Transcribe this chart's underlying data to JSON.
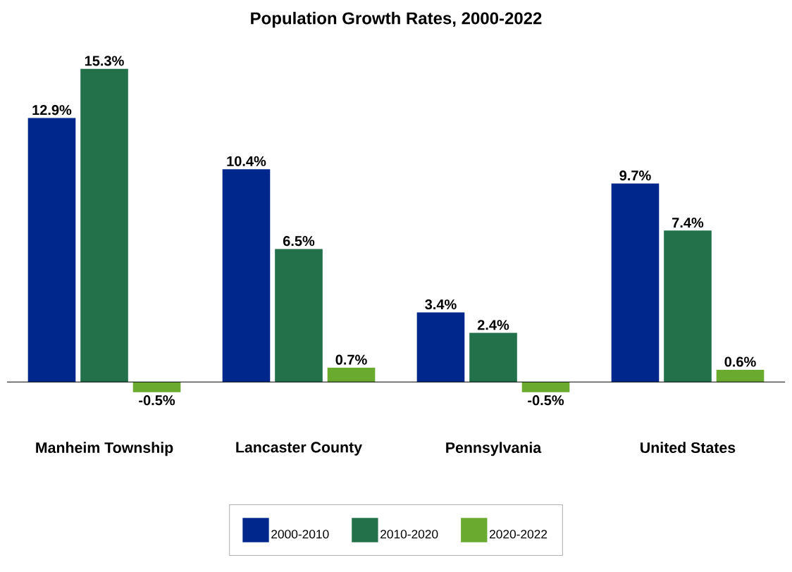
{
  "chart_data": {
    "type": "bar",
    "title": "Population Growth Rates, 2000-2022",
    "categories": [
      "Manheim Township",
      "Lancaster County",
      "Pennsylvania",
      "United States"
    ],
    "series": [
      {
        "name": "2000-2010",
        "color": "#00288c",
        "values": [
          12.9,
          10.4,
          3.4,
          9.7
        ],
        "value_labels": [
          "12.9%",
          "10.4%",
          "3.4%",
          "9.7%"
        ]
      },
      {
        "name": "2010-2020",
        "color": "#23714a",
        "values": [
          15.3,
          6.5,
          2.4,
          7.4
        ],
        "value_labels": [
          "15.3%",
          "6.5%",
          "2.4%",
          "7.4%"
        ]
      },
      {
        "name": "2020-2022",
        "color": "#6aaa2f",
        "values": [
          -0.5,
          0.7,
          -0.5,
          0.6
        ],
        "value_labels": [
          "-0.5%",
          "0.7%",
          "-0.5%",
          "0.6%"
        ]
      }
    ],
    "legend": "bottom"
  }
}
